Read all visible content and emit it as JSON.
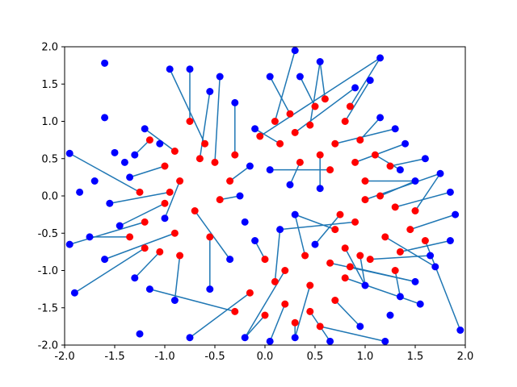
{
  "chart_data": {
    "type": "scatter",
    "title": "",
    "xlabel": "",
    "ylabel": "",
    "xlim": [
      -2.0,
      2.0
    ],
    "ylim": [
      -2.0,
      2.0
    ],
    "x_ticks": [
      "-2.0",
      "-1.5",
      "-1.0",
      "-0.5",
      "0.0",
      "0.5",
      "1.0",
      "1.5",
      "2.0"
    ],
    "y_ticks": [
      "-2.0",
      "-1.5",
      "-1.0",
      "-0.5",
      "0.0",
      "0.5",
      "1.0",
      "1.5",
      "2.0"
    ],
    "grid": false,
    "legend": "none",
    "description": "Each red point (one of four roughly circular clusters centred near (-0.75,0.3), (0.55,0.85), (1.05,-0.45), (0.3,-1.15)) is joined by a line segment to a blue point scattered further out; the segments form a star-burst pattern.",
    "series": [
      {
        "role": "red_points",
        "color": "#ff0000",
        "points": [
          [
            -1.0,
            0.4
          ],
          [
            -0.9,
            0.6
          ],
          [
            -0.6,
            0.7
          ],
          [
            -0.5,
            0.45
          ],
          [
            -0.35,
            0.2
          ],
          [
            -0.45,
            -0.05
          ],
          [
            -0.7,
            -0.2
          ],
          [
            -1.0,
            -0.1
          ],
          [
            -1.25,
            0.05
          ],
          [
            -1.2,
            -0.35
          ],
          [
            -0.9,
            -0.5
          ],
          [
            -0.55,
            -0.55
          ],
          [
            -0.75,
            1.0
          ],
          [
            -1.15,
            0.75
          ],
          [
            -0.3,
            0.55
          ],
          [
            -0.85,
            0.2
          ],
          [
            -1.05,
            -0.75
          ],
          [
            -1.35,
            -0.55
          ],
          [
            -1.2,
            -0.7
          ],
          [
            -0.85,
            -0.8
          ],
          [
            -0.65,
            0.5
          ],
          [
            -0.95,
            0.05
          ],
          [
            0.25,
            1.1
          ],
          [
            0.5,
            1.2
          ],
          [
            0.8,
            1.0
          ],
          [
            0.95,
            0.75
          ],
          [
            0.9,
            0.45
          ],
          [
            0.65,
            0.35
          ],
          [
            0.35,
            0.45
          ],
          [
            0.15,
            0.7
          ],
          [
            0.1,
            1.0
          ],
          [
            0.45,
            0.95
          ],
          [
            0.7,
            0.7
          ],
          [
            0.55,
            0.55
          ],
          [
            0.3,
            0.85
          ],
          [
            -0.05,
            0.8
          ],
          [
            0.6,
            1.3
          ],
          [
            1.1,
            0.55
          ],
          [
            1.25,
            0.4
          ],
          [
            1.0,
            0.2
          ],
          [
            0.85,
            1.2
          ],
          [
            0.75,
            -0.25
          ],
          [
            1.0,
            -0.05
          ],
          [
            1.3,
            -0.15
          ],
          [
            1.45,
            -0.45
          ],
          [
            1.35,
            -0.75
          ],
          [
            1.05,
            -0.85
          ],
          [
            0.8,
            -0.7
          ],
          [
            0.7,
            -0.45
          ],
          [
            0.9,
            -0.35
          ],
          [
            1.2,
            -0.55
          ],
          [
            1.5,
            -0.2
          ],
          [
            1.6,
            -0.6
          ],
          [
            1.15,
            0.0
          ],
          [
            0.85,
            -0.95
          ],
          [
            1.3,
            -1.0
          ],
          [
            0.0,
            -0.85
          ],
          [
            0.1,
            -1.15
          ],
          [
            0.2,
            -1.45
          ],
          [
            0.45,
            -1.55
          ],
          [
            0.7,
            -1.4
          ],
          [
            0.8,
            -1.1
          ],
          [
            0.65,
            -0.9
          ],
          [
            0.4,
            -0.8
          ],
          [
            0.2,
            -1.0
          ],
          [
            0.45,
            -1.2
          ],
          [
            0.55,
            -1.75
          ],
          [
            0.0,
            -1.6
          ],
          [
            -0.15,
            -1.3
          ],
          [
            -0.3,
            -1.55
          ],
          [
            0.95,
            -0.8
          ],
          [
            0.3,
            -1.7
          ]
        ]
      },
      {
        "role": "blue_points",
        "color": "#0000ff",
        "points": [
          [
            -1.6,
            1.78
          ],
          [
            -1.95,
            0.57
          ],
          [
            -1.6,
            1.05
          ],
          [
            -1.5,
            0.58
          ],
          [
            -1.4,
            0.45
          ],
          [
            -1.7,
            0.2
          ],
          [
            -1.85,
            0.05
          ],
          [
            -1.55,
            -0.1
          ],
          [
            -1.45,
            -0.4
          ],
          [
            -1.75,
            -0.55
          ],
          [
            -1.95,
            -0.65
          ],
          [
            -1.6,
            -0.85
          ],
          [
            -1.3,
            -1.1
          ],
          [
            -1.35,
            0.25
          ],
          [
            -1.2,
            0.9
          ],
          [
            -1.3,
            0.55
          ],
          [
            -0.95,
            1.7
          ],
          [
            -0.75,
            1.7
          ],
          [
            -0.55,
            1.4
          ],
          [
            -0.45,
            1.6
          ],
          [
            -0.3,
            1.25
          ],
          [
            -0.15,
            0.4
          ],
          [
            -0.1,
            0.9
          ],
          [
            -0.25,
            0.0
          ],
          [
            -0.2,
            -0.35
          ],
          [
            -0.35,
            -0.85
          ],
          [
            -0.55,
            -1.25
          ],
          [
            -0.9,
            -1.4
          ],
          [
            -1.15,
            -1.25
          ],
          [
            -1.9,
            -1.3
          ],
          [
            -1.25,
            -1.85
          ],
          [
            -1.05,
            0.7
          ],
          [
            0.05,
            1.6
          ],
          [
            0.35,
            1.6
          ],
          [
            0.55,
            1.8
          ],
          [
            0.9,
            1.45
          ],
          [
            1.05,
            1.55
          ],
          [
            1.15,
            1.05
          ],
          [
            1.3,
            0.9
          ],
          [
            1.4,
            0.7
          ],
          [
            1.15,
            1.85
          ],
          [
            0.3,
            1.95
          ],
          [
            0.05,
            0.35
          ],
          [
            0.25,
            0.15
          ],
          [
            0.55,
            0.1
          ],
          [
            1.35,
            0.35
          ],
          [
            1.5,
            0.2
          ],
          [
            1.6,
            0.5
          ],
          [
            1.75,
            0.3
          ],
          [
            1.85,
            0.05
          ],
          [
            1.9,
            -0.25
          ],
          [
            1.85,
            -0.6
          ],
          [
            1.65,
            -0.8
          ],
          [
            1.7,
            -0.95
          ],
          [
            1.5,
            -1.15
          ],
          [
            1.55,
            -1.45
          ],
          [
            1.25,
            -1.6
          ],
          [
            1.2,
            -1.95
          ],
          [
            0.95,
            -1.75
          ],
          [
            0.65,
            -1.95
          ],
          [
            0.3,
            -1.9
          ],
          [
            0.05,
            -1.95
          ],
          [
            -0.2,
            -1.9
          ],
          [
            -0.1,
            -0.6
          ],
          [
            0.15,
            -0.45
          ],
          [
            0.3,
            -0.25
          ],
          [
            0.5,
            -0.65
          ],
          [
            1.0,
            -1.2
          ],
          [
            1.35,
            -1.35
          ],
          [
            -0.75,
            -1.9
          ],
          [
            -1.0,
            -0.3
          ],
          [
            1.95,
            -1.8
          ]
        ]
      }
    ],
    "segments": [
      [
        0,
        13
      ],
      [
        1,
        14
      ],
      [
        2,
        16
      ],
      [
        3,
        19
      ],
      [
        4,
        21
      ],
      [
        5,
        23
      ],
      [
        6,
        25
      ],
      [
        7,
        8
      ],
      [
        8,
        1
      ],
      [
        9,
        10
      ],
      [
        10,
        11
      ],
      [
        11,
        26
      ],
      [
        12,
        17
      ],
      [
        13,
        15
      ],
      [
        14,
        20
      ],
      [
        15,
        70
      ],
      [
        16,
        12
      ],
      [
        17,
        9
      ],
      [
        18,
        29
      ],
      [
        19,
        27
      ],
      [
        20,
        18
      ],
      [
        21,
        7
      ],
      [
        22,
        32
      ],
      [
        23,
        33
      ],
      [
        24,
        36
      ],
      [
        25,
        37
      ],
      [
        26,
        39
      ],
      [
        27,
        42
      ],
      [
        28,
        43
      ],
      [
        29,
        22
      ],
      [
        30,
        41
      ],
      [
        31,
        34
      ],
      [
        32,
        38
      ],
      [
        33,
        44
      ],
      [
        34,
        35
      ],
      [
        35,
        40
      ],
      [
        36,
        34
      ],
      [
        37,
        45
      ],
      [
        38,
        47
      ],
      [
        39,
        46
      ],
      [
        40,
        40
      ],
      [
        41,
        66
      ],
      [
        42,
        48
      ],
      [
        43,
        49
      ],
      [
        44,
        50
      ],
      [
        45,
        51
      ],
      [
        46,
        52
      ],
      [
        47,
        67
      ],
      [
        48,
        65
      ],
      [
        49,
        64
      ],
      [
        50,
        53
      ],
      [
        51,
        48
      ],
      [
        52,
        71
      ],
      [
        53,
        46
      ],
      [
        54,
        54
      ],
      [
        55,
        68
      ],
      [
        56,
        63
      ],
      [
        57,
        64
      ],
      [
        58,
        61
      ],
      [
        59,
        59
      ],
      [
        60,
        58
      ],
      [
        61,
        55
      ],
      [
        62,
        54
      ],
      [
        63,
        65
      ],
      [
        64,
        62
      ],
      [
        65,
        60
      ],
      [
        66,
        57
      ],
      [
        67,
        62
      ],
      [
        68,
        69
      ],
      [
        69,
        28
      ],
      [
        70,
        67
      ],
      [
        71,
        60
      ]
    ]
  }
}
